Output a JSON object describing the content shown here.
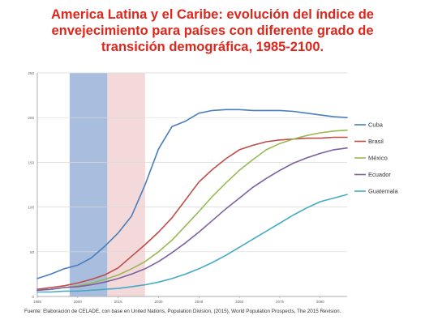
{
  "title_lines": [
    "America Latina y el Caribe: evolución del índice de",
    "envejecimiento para países con diferente grado de",
    "transición demográfica, 1985-2100."
  ],
  "source": "Fuente:   Elaboración de CELADE, con base en United Nations, Population Division, (2015), World Population Prospects, The 2015 Revision.",
  "colors": {
    "title": "#e0251b",
    "band_blue": "#a9bedf",
    "band_pink": "#f3d9d9",
    "grid": "#d9d9d9"
  },
  "chart_data": {
    "type": "line",
    "xlim": [
      1985,
      2100
    ],
    "ylim": [
      0,
      250
    ],
    "y_ticks": [
      0,
      50,
      100,
      150,
      200,
      250
    ],
    "y_tick_labels": [
      "0",
      "50",
      "100",
      "150",
      "200",
      "250"
    ],
    "x_tick_labels": [
      "1985",
      "2000",
      "2015",
      "2030",
      "2045",
      "2060",
      "2075",
      "2090"
    ],
    "x_tick_values": [
      1985,
      2000,
      2015,
      2030,
      2045,
      2060,
      2075,
      2090
    ],
    "grid": true,
    "legend_position": "right",
    "shaded_bands": [
      {
        "from": 1997,
        "to": 2011,
        "color": "#a9bedf"
      },
      {
        "from": 2011,
        "to": 2025,
        "color": "#f3d9d9"
      }
    ],
    "x": [
      1985,
      1990,
      1995,
      2000,
      2005,
      2010,
      2015,
      2020,
      2025,
      2030,
      2035,
      2040,
      2045,
      2050,
      2055,
      2060,
      2065,
      2070,
      2075,
      2080,
      2085,
      2090,
      2095,
      2100
    ],
    "series": [
      {
        "name": "Cuba",
        "color": "#4a7ebb",
        "values": [
          20,
          25,
          31,
          35,
          43,
          56,
          71,
          90,
          125,
          165,
          190,
          196,
          205,
          208,
          209,
          209,
          208,
          208,
          208,
          207,
          205,
          203,
          201,
          200
        ]
      },
      {
        "name": "Brasil",
        "color": "#be4b48",
        "values": [
          8,
          10,
          12,
          15,
          19,
          24,
          32,
          45,
          58,
          72,
          88,
          108,
          128,
          142,
          154,
          164,
          169,
          173,
          175,
          176,
          177,
          177,
          178,
          178
        ]
      },
      {
        "name": "México",
        "color": "#98b954",
        "values": [
          7,
          8,
          10,
          12,
          15,
          19,
          24,
          31,
          39,
          50,
          63,
          79,
          95,
          112,
          127,
          141,
          153,
          164,
          171,
          176,
          180,
          183,
          185,
          186
        ]
      },
      {
        "name": "Ecuador",
        "color": "#7d60a0",
        "values": [
          7,
          8,
          10,
          11,
          13,
          16,
          20,
          25,
          31,
          39,
          49,
          60,
          72,
          85,
          98,
          110,
          122,
          132,
          141,
          149,
          155,
          160,
          164,
          166
        ]
      },
      {
        "name": "Guatemala",
        "color": "#46aac5",
        "values": [
          5,
          5,
          6,
          6,
          7,
          8,
          9,
          11,
          13,
          16,
          20,
          25,
          31,
          38,
          46,
          55,
          64,
          73,
          82,
          91,
          99,
          106,
          110,
          114
        ]
      }
    ]
  }
}
